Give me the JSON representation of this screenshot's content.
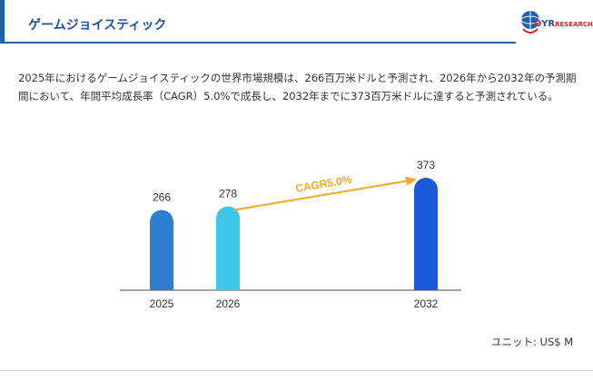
{
  "header": {
    "title": "ゲームジョイスティック",
    "accent_color": "#1f5fb0"
  },
  "logo": {
    "icon": "globe-logo-icon",
    "text_o": "O",
    "text_main": "YR",
    "text_sub": "RESEARCH"
  },
  "description": "2025年におけるゲームジョイスティックの世界市場規模は、266百万米ドルと予測され、2026年から2032年の予測期間において、年間平均成長率（CAGR）5.0%で成長し、2032年までに373百万米ドルに達すると予測されている。",
  "unit_label": "ユニット: US$ M",
  "chart_data": {
    "type": "bar",
    "categories": [
      "2025",
      "2026",
      "2032"
    ],
    "values": [
      266,
      278,
      373
    ],
    "value_labels": [
      "266",
      "278",
      "373"
    ],
    "colors": [
      "#2f7fd0",
      "#3ec6e8",
      "#1a5ad8"
    ],
    "annotation": {
      "text": "CAGR5.0%",
      "from": "2026",
      "to": "2032",
      "color": "#f5a623"
    },
    "ylim": [
      0,
      373
    ],
    "grid": false,
    "legend": "none"
  }
}
